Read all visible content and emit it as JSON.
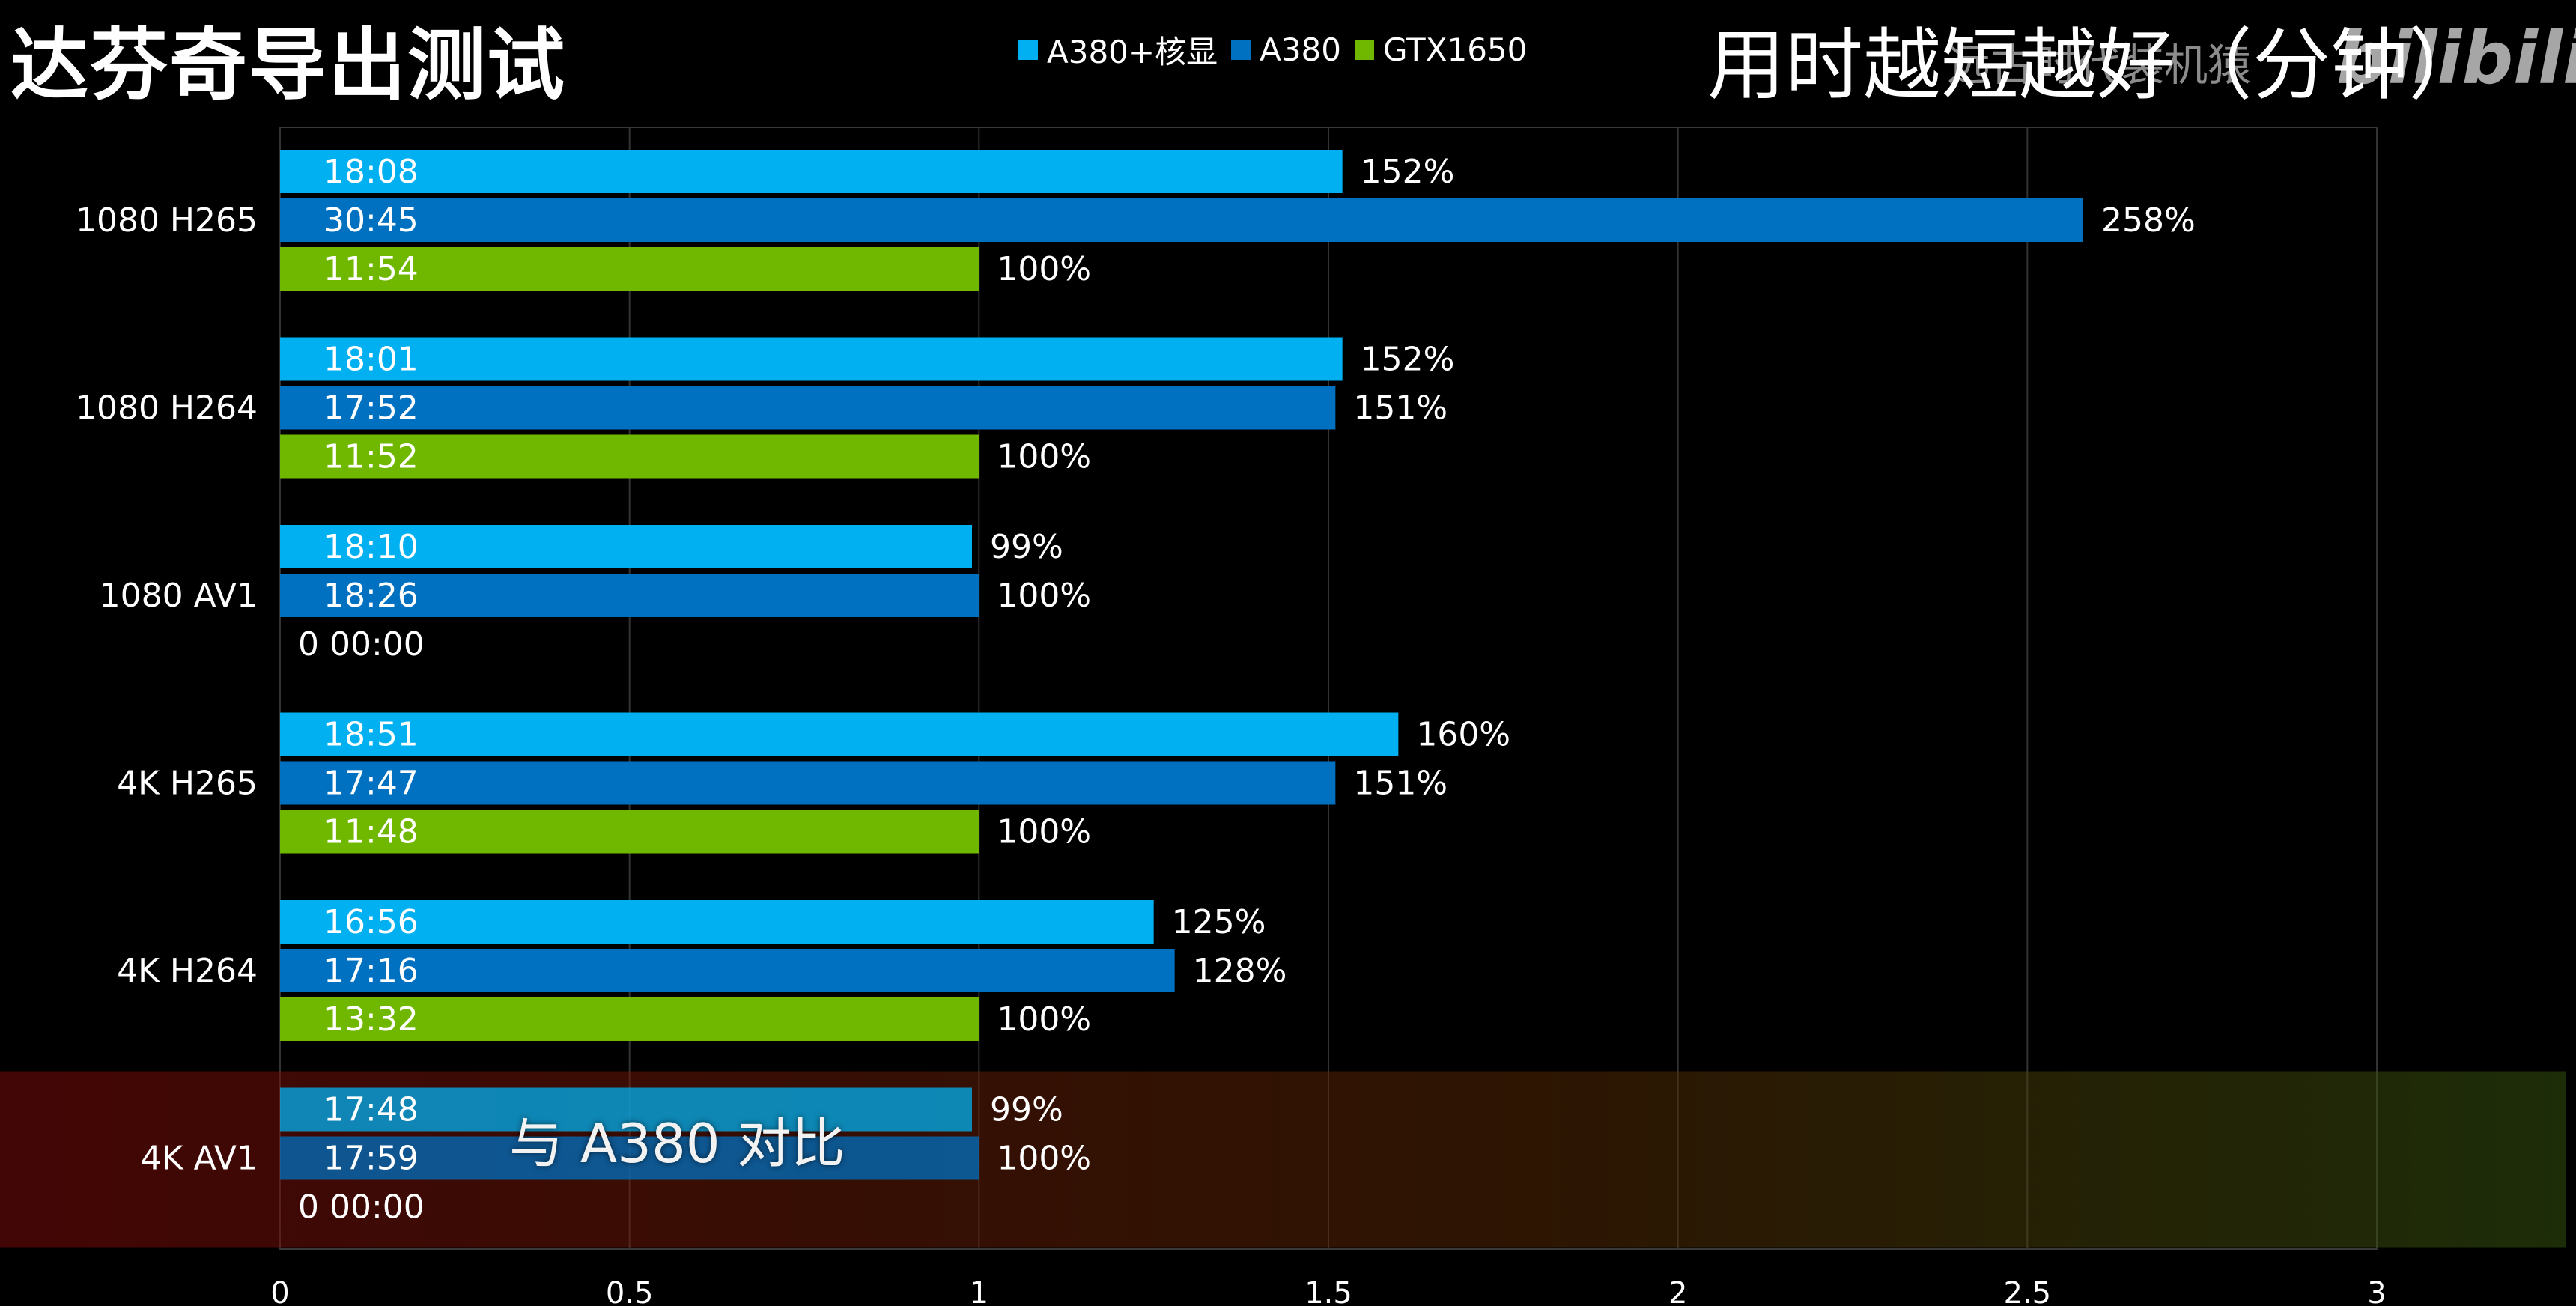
{
  "header": {
    "title": "达芬奇导出测试",
    "subtitle": "用时越短越好（分钟）"
  },
  "watermark": {
    "text": "远古时代装机猿",
    "logo": "bilibili"
  },
  "caption": "与 A380 对比",
  "chart_data": {
    "type": "bar",
    "orientation": "horizontal",
    "categories": [
      "1080 H265",
      "1080 H264",
      "1080 AV1",
      "4K H265",
      "4K H264",
      "4K AV1"
    ],
    "xlim": [
      0,
      3
    ],
    "xticks": [
      "0",
      "0.5",
      "1",
      "1.5",
      "2",
      "2.5",
      "3"
    ],
    "grid": true,
    "legend_position": "top-center",
    "highlight_category": "4K AV1",
    "series": [
      {
        "name": "A380+核显",
        "color": "#00b0f0",
        "values": [
          1.52,
          1.52,
          0.99,
          1.6,
          1.25,
          0.99
        ],
        "time_labels": [
          "18:08",
          "18:01",
          "18:10",
          "18:51",
          "16:56",
          "17:48"
        ],
        "percent_labels": [
          "152%",
          "152%",
          "99%",
          "160%",
          "125%",
          "99%"
        ]
      },
      {
        "name": "A380",
        "color": "#0070c0",
        "values": [
          2.58,
          1.51,
          1.0,
          1.51,
          1.28,
          1.0
        ],
        "time_labels": [
          "30:45",
          "17:52",
          "18:26",
          "17:47",
          "17:16",
          "17:59"
        ],
        "percent_labels": [
          "258%",
          "151%",
          "100%",
          "151%",
          "128%",
          "100%"
        ]
      },
      {
        "name": "GTX1650",
        "color": "#70b800",
        "values": [
          1.0,
          1.0,
          0,
          1.0,
          1.0,
          0
        ],
        "time_labels": [
          "11:54",
          "11:52",
          "0 00:00",
          "11:48",
          "13:32",
          "0 00:00"
        ],
        "percent_labels": [
          "100%",
          "100%",
          "",
          "100%",
          "100%",
          ""
        ]
      }
    ]
  }
}
